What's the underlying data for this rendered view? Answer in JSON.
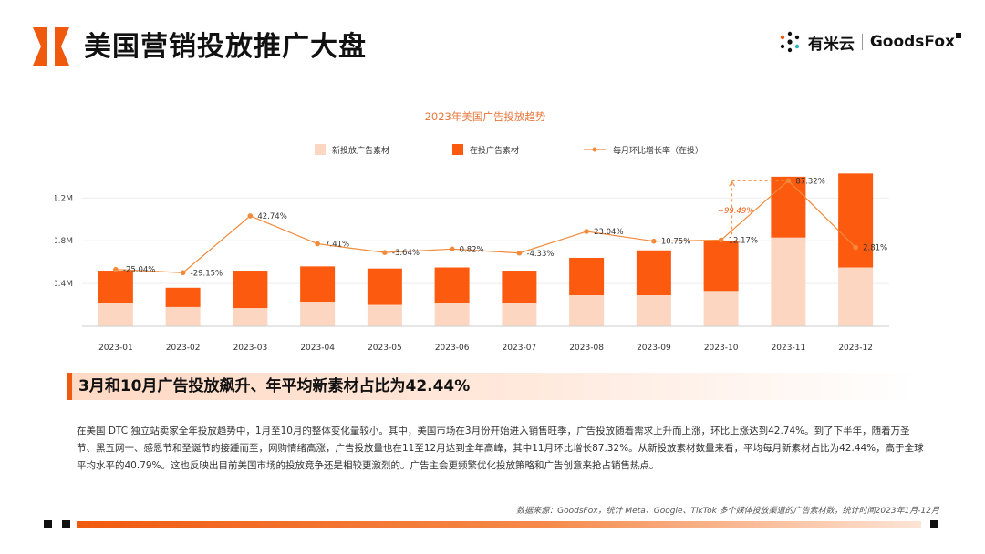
{
  "header": {
    "title": "美国营销投放推广大盘",
    "brand_cn": "有米云",
    "brand_en": "GoodsFox"
  },
  "colors": {
    "new": "#fdd6c2",
    "active": "#fc5a0f",
    "line": "#f28a3c",
    "accent": "#f05a0f"
  },
  "chart_data": {
    "type": "bar",
    "title": "2023年美国广告投放趋势",
    "categories": [
      "2023-01",
      "2023-02",
      "2023-03",
      "2023-04",
      "2023-05",
      "2023-06",
      "2023-07",
      "2023-08",
      "2023-09",
      "2023-10",
      "2023-11",
      "2023-12"
    ],
    "series": [
      {
        "name": "新投放广告素材",
        "kind": "stacked-bar",
        "values": [
          0.22,
          0.18,
          0.17,
          0.23,
          0.2,
          0.22,
          0.22,
          0.29,
          0.29,
          0.33,
          0.83,
          0.55
        ]
      },
      {
        "name": "在投广告素材",
        "kind": "stacked-bar",
        "values": [
          0.3,
          0.18,
          0.35,
          0.33,
          0.34,
          0.33,
          0.3,
          0.35,
          0.42,
          0.47,
          0.57,
          0.88
        ]
      },
      {
        "name": "每月环比增长率（在投）",
        "kind": "line",
        "values": [
          -25.04,
          -29.15,
          42.74,
          7.41,
          -3.64,
          0.82,
          -4.33,
          23.04,
          10.75,
          12.17,
          87.32,
          2.81
        ]
      }
    ],
    "data_labels": [
      "-25.04%",
      "-29.15%",
      "42.74%",
      "7.41%",
      "-3.64%",
      "0.82%",
      "-4.33%",
      "23.04%",
      "10.75%",
      "12.17%",
      "87.32%",
      "2.81%"
    ],
    "y_ticks": [
      "0.4M",
      "0.8M",
      "1.2M"
    ],
    "ylim": [
      0,
      1.45
    ],
    "annotation": "+99.49%",
    "legend_position": "top"
  },
  "headline": "3月和10月广告投放飙升、年平均新素材占比为42.44%",
  "body": "在美国 DTC 独立站卖家全年投放趋势中，1月至10月的整体变化量较小。其中，美国市场在3月份开始进入销售旺季，广告投放随着需求上升而上涨，环比上涨达到42.74%。到了下半年，随着万圣节、黑五网一、感恩节和圣诞节的接踵而至，网购情绪高涨，广告投放量也在11至12月达到全年高峰，其中11月环比增长87.32%。从新投放素材数量来看，平均每月新素材占比为42.44%，高于全球平均水平的40.79%。这也反映出目前美国市场的投放竞争还是相较更激烈的。广告主会更频繁优化投放策略和广告创意来抢占销售热点。",
  "source": "数据来源：GoodsFox，统计 Meta、Google、TikTok 多个媒体投放渠道的广告素材数，统计时间2023年1月-12月"
}
